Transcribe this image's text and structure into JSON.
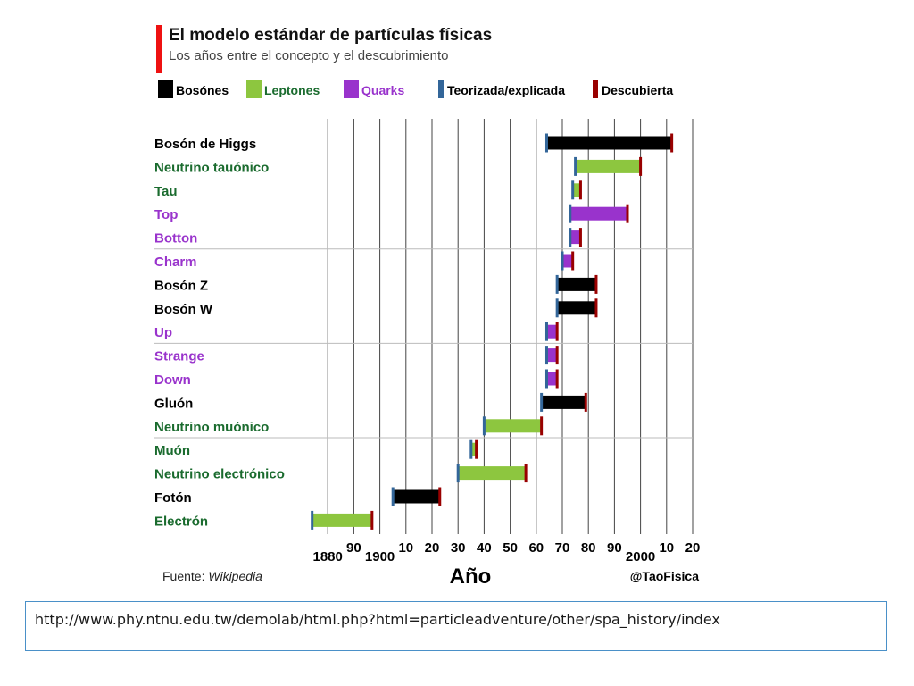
{
  "chart_data": {
    "type": "timeline",
    "title": "El modelo estándar de partículas físicas",
    "subtitle": "Los años entre el concepto y el descubrimiento",
    "xlabel": "Año",
    "source_label": "Fuente:",
    "source_name": "Wikipedia",
    "credit": "@TaoFisica",
    "xlim": [
      1870,
      2020
    ],
    "x_ticks": [
      {
        "value": 1880,
        "label": "1880",
        "row": 2
      },
      {
        "value": 1890,
        "label": "90",
        "row": 1
      },
      {
        "value": 1900,
        "label": "1900",
        "row": 2
      },
      {
        "value": 1910,
        "label": "10",
        "row": 1
      },
      {
        "value": 1920,
        "label": "20",
        "row": 1
      },
      {
        "value": 1930,
        "label": "30",
        "row": 1
      },
      {
        "value": 1940,
        "label": "40",
        "row": 1
      },
      {
        "value": 1950,
        "label": "50",
        "row": 1
      },
      {
        "value": 1960,
        "label": "60",
        "row": 1
      },
      {
        "value": 1970,
        "label": "70",
        "row": 1
      },
      {
        "value": 1980,
        "label": "80",
        "row": 1
      },
      {
        "value": 1990,
        "label": "90",
        "row": 1
      },
      {
        "value": 2000,
        "label": "2000",
        "row": 2
      },
      {
        "value": 2010,
        "label": "10",
        "row": 1
      },
      {
        "value": 2020,
        "label": "20",
        "row": 1
      }
    ],
    "legend": [
      {
        "label": "Bosónes",
        "color": "#000000",
        "kind": "category"
      },
      {
        "label": "Leptones",
        "color": "#8dc63f",
        "kind": "category"
      },
      {
        "label": "Quarks",
        "color": "#9933cc",
        "kind": "category"
      },
      {
        "label": "Teorizada/explicada",
        "color": "#336699",
        "kind": "marker"
      },
      {
        "label": "Descubierta",
        "color": "#990000",
        "kind": "marker"
      }
    ],
    "category_colors": {
      "boson": "#000000",
      "lepton": "#8dc63f",
      "quark": "#9933cc"
    },
    "label_colors": {
      "boson": "#000000",
      "lepton": "#1a6b2e",
      "quark": "#9933cc"
    },
    "marker_colors": {
      "theorized": "#336699",
      "discovered": "#990000"
    },
    "rows": [
      {
        "name": "Bosón de Higgs",
        "category": "boson",
        "theorized": 1964,
        "discovered": 2012
      },
      {
        "name": "Neutrino tauónico",
        "category": "lepton",
        "theorized": 1975,
        "discovered": 2000
      },
      {
        "name": "Tau",
        "category": "lepton",
        "theorized": 1974,
        "discovered": 1977
      },
      {
        "name": "Top",
        "category": "quark",
        "theorized": 1973,
        "discovered": 1995
      },
      {
        "name": "Botton",
        "category": "quark",
        "theorized": 1973,
        "discovered": 1977
      },
      {
        "name": "Charm",
        "category": "quark",
        "theorized": 1970,
        "discovered": 1974
      },
      {
        "name": "Bosón Z",
        "category": "boson",
        "theorized": 1968,
        "discovered": 1983
      },
      {
        "name": "Bosón W",
        "category": "boson",
        "theorized": 1968,
        "discovered": 1983
      },
      {
        "name": "Up",
        "category": "quark",
        "theorized": 1964,
        "discovered": 1968
      },
      {
        "name": "Strange",
        "category": "quark",
        "theorized": 1964,
        "discovered": 1968
      },
      {
        "name": "Down",
        "category": "quark",
        "theorized": 1964,
        "discovered": 1968
      },
      {
        "name": "Gluón",
        "category": "boson",
        "theorized": 1962,
        "discovered": 1979
      },
      {
        "name": "Neutrino muónico",
        "category": "lepton",
        "theorized": 1940,
        "discovered": 1962
      },
      {
        "name": "Muón",
        "category": "lepton",
        "theorized": 1935,
        "discovered": 1937
      },
      {
        "name": "Neutrino electrónico",
        "category": "lepton",
        "theorized": 1930,
        "discovered": 1956
      },
      {
        "name": "Fotón",
        "category": "boson",
        "theorized": 1905,
        "discovered": 1923
      },
      {
        "name": "Electrón",
        "category": "lepton",
        "theorized": 1874,
        "discovered": 1897
      }
    ],
    "separators_after_rows": [
      4,
      8,
      12
    ],
    "grid": true
  },
  "footer": {
    "url": "http://www.phy.ntnu.edu.tw/demolab/html.php?html=particleadventure/other/spa_history/index"
  }
}
